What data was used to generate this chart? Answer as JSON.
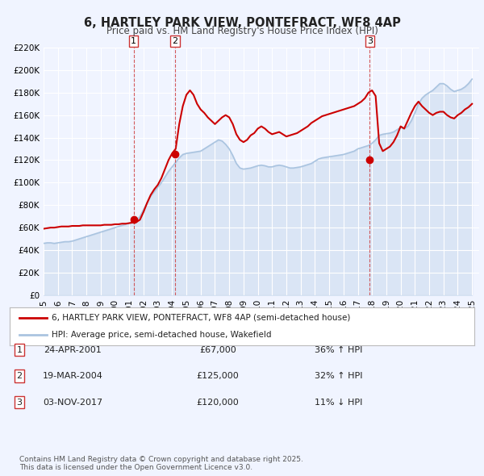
{
  "title": "6, HARTLEY PARK VIEW, PONTEFRACT, WF8 4AP",
  "subtitle": "Price paid vs. HM Land Registry's House Price Index (HPI)",
  "xlabel": "",
  "ylabel": "",
  "ylim": [
    0,
    220000
  ],
  "yticks": [
    0,
    20000,
    40000,
    60000,
    80000,
    100000,
    120000,
    140000,
    160000,
    180000,
    200000,
    220000
  ],
  "ytick_labels": [
    "£0",
    "£20K",
    "£40K",
    "£60K",
    "£80K",
    "£100K",
    "£120K",
    "£140K",
    "£160K",
    "£180K",
    "£200K",
    "£220K"
  ],
  "xlim_start": 1995.0,
  "xlim_end": 2025.5,
  "bg_color": "#f0f4ff",
  "plot_bg_color": "#f0f4ff",
  "hpi_color": "#aac4e0",
  "price_color": "#cc0000",
  "sale_marker_color": "#cc0000",
  "transaction_line_color": "#cc3333",
  "legend_label_price": "6, HARTLEY PARK VIEW, PONTEFRACT, WF8 4AP (semi-detached house)",
  "legend_label_hpi": "HPI: Average price, semi-detached house, Wakefield",
  "transactions": [
    {
      "num": 1,
      "date": 2001.31,
      "price": 67000,
      "label": "1",
      "pct": "36%",
      "dir": "↑",
      "date_str": "24-APR-2001",
      "price_str": "£67,000",
      "hpi_str": "36% ↑ HPI"
    },
    {
      "num": 2,
      "date": 2004.21,
      "price": 125000,
      "label": "2",
      "pct": "32%",
      "dir": "↑",
      "date_str": "19-MAR-2004",
      "price_str": "£125,000",
      "hpi_str": "32% ↑ HPI"
    },
    {
      "num": 3,
      "date": 2017.84,
      "price": 120000,
      "label": "3",
      "pct": "11%",
      "dir": "↓",
      "date_str": "03-NOV-2017",
      "price_str": "£120,000",
      "hpi_str": "11% ↓ HPI"
    }
  ],
  "footer": "Contains HM Land Registry data © Crown copyright and database right 2025.\nThis data is licensed under the Open Government Licence v3.0.",
  "hpi_data_x": [
    1995.0,
    1995.25,
    1995.5,
    1995.75,
    1996.0,
    1996.25,
    1996.5,
    1996.75,
    1997.0,
    1997.25,
    1997.5,
    1997.75,
    1998.0,
    1998.25,
    1998.5,
    1998.75,
    1999.0,
    1999.25,
    1999.5,
    1999.75,
    2000.0,
    2000.25,
    2000.5,
    2000.75,
    2001.0,
    2001.25,
    2001.5,
    2001.75,
    2002.0,
    2002.25,
    2002.5,
    2002.75,
    2003.0,
    2003.25,
    2003.5,
    2003.75,
    2004.0,
    2004.25,
    2004.5,
    2004.75,
    2005.0,
    2005.25,
    2005.5,
    2005.75,
    2006.0,
    2006.25,
    2006.5,
    2006.75,
    2007.0,
    2007.25,
    2007.5,
    2007.75,
    2008.0,
    2008.25,
    2008.5,
    2008.75,
    2009.0,
    2009.25,
    2009.5,
    2009.75,
    2010.0,
    2010.25,
    2010.5,
    2010.75,
    2011.0,
    2011.25,
    2011.5,
    2011.75,
    2012.0,
    2012.25,
    2012.5,
    2012.75,
    2013.0,
    2013.25,
    2013.5,
    2013.75,
    2014.0,
    2014.25,
    2014.5,
    2014.75,
    2015.0,
    2015.25,
    2015.5,
    2015.75,
    2016.0,
    2016.25,
    2016.5,
    2016.75,
    2017.0,
    2017.25,
    2017.5,
    2017.75,
    2018.0,
    2018.25,
    2018.5,
    2018.75,
    2019.0,
    2019.25,
    2019.5,
    2019.75,
    2020.0,
    2020.25,
    2020.5,
    2020.75,
    2021.0,
    2021.25,
    2021.5,
    2021.75,
    2022.0,
    2022.25,
    2022.5,
    2022.75,
    2023.0,
    2023.25,
    2023.5,
    2023.75,
    2024.0,
    2024.25,
    2024.5,
    2024.75,
    2025.0
  ],
  "hpi_data_y": [
    46000,
    46500,
    46500,
    46000,
    46500,
    47000,
    47500,
    47500,
    48000,
    49000,
    50000,
    51000,
    52000,
    53000,
    54000,
    55000,
    56000,
    57000,
    58000,
    59000,
    60000,
    61000,
    62000,
    63000,
    64000,
    65000,
    66000,
    70000,
    76000,
    82000,
    88000,
    92000,
    96000,
    100000,
    105000,
    110000,
    114000,
    118000,
    122000,
    125000,
    126000,
    126500,
    127000,
    127500,
    128000,
    130000,
    132000,
    134000,
    136000,
    138000,
    137000,
    134000,
    130000,
    124000,
    117000,
    113000,
    112000,
    112500,
    113000,
    114000,
    115000,
    115500,
    115000,
    114000,
    114000,
    115000,
    115500,
    115000,
    114000,
    113000,
    113000,
    113500,
    114000,
    115000,
    116000,
    117000,
    119000,
    121000,
    122000,
    122500,
    123000,
    123500,
    124000,
    124500,
    125000,
    126000,
    127000,
    128000,
    130000,
    131000,
    132000,
    133000,
    135000,
    138000,
    142000,
    143000,
    143500,
    144000,
    145000,
    147000,
    149000,
    148000,
    150000,
    155000,
    162000,
    170000,
    175000,
    178000,
    180000,
    182000,
    185000,
    188000,
    188000,
    186000,
    183000,
    181000,
    182000,
    183000,
    185000,
    188000,
    192000
  ],
  "price_data_x": [
    1995.0,
    1995.25,
    1995.5,
    1995.75,
    1996.0,
    1996.25,
    1996.5,
    1996.75,
    1997.0,
    1997.25,
    1997.5,
    1997.75,
    1998.0,
    1998.25,
    1998.5,
    1998.75,
    1999.0,
    1999.25,
    1999.5,
    1999.75,
    2000.0,
    2000.25,
    2000.5,
    2000.75,
    2001.0,
    2001.25,
    2001.5,
    2001.75,
    2002.0,
    2002.25,
    2002.5,
    2002.75,
    2003.0,
    2003.25,
    2003.5,
    2003.75,
    2004.0,
    2004.25,
    2004.5,
    2004.75,
    2005.0,
    2005.25,
    2005.5,
    2005.75,
    2006.0,
    2006.25,
    2006.5,
    2006.75,
    2007.0,
    2007.25,
    2007.5,
    2007.75,
    2008.0,
    2008.25,
    2008.5,
    2008.75,
    2009.0,
    2009.25,
    2009.5,
    2009.75,
    2010.0,
    2010.25,
    2010.5,
    2010.75,
    2011.0,
    2011.25,
    2011.5,
    2011.75,
    2012.0,
    2012.25,
    2012.5,
    2012.75,
    2013.0,
    2013.25,
    2013.5,
    2013.75,
    2014.0,
    2014.25,
    2014.5,
    2014.75,
    2015.0,
    2015.25,
    2015.5,
    2015.75,
    2016.0,
    2016.25,
    2016.5,
    2016.75,
    2017.0,
    2017.25,
    2017.5,
    2017.75,
    2018.0,
    2018.25,
    2018.5,
    2018.75,
    2019.0,
    2019.25,
    2019.5,
    2019.75,
    2020.0,
    2020.25,
    2020.5,
    2020.75,
    2021.0,
    2021.25,
    2021.5,
    2021.75,
    2022.0,
    2022.25,
    2022.5,
    2022.75,
    2023.0,
    2023.25,
    2023.5,
    2023.75,
    2024.0,
    2024.25,
    2024.5,
    2024.75,
    2025.0
  ],
  "price_data_y": [
    59000,
    59500,
    60000,
    60000,
    60500,
    61000,
    61000,
    61000,
    61500,
    61500,
    61500,
    62000,
    62000,
    62000,
    62000,
    62000,
    62000,
    62500,
    62500,
    62500,
    63000,
    63000,
    63500,
    63500,
    64000,
    64500,
    65000,
    67000,
    74000,
    82000,
    89000,
    94000,
    98000,
    104000,
    112000,
    120000,
    126000,
    130000,
    152000,
    168000,
    178000,
    182000,
    178000,
    170000,
    165000,
    162000,
    158000,
    155000,
    152000,
    155000,
    158000,
    160000,
    158000,
    152000,
    143000,
    138000,
    136000,
    138000,
    142000,
    144000,
    148000,
    150000,
    148000,
    145000,
    143000,
    144000,
    145000,
    143000,
    141000,
    142000,
    143000,
    144000,
    146000,
    148000,
    150000,
    153000,
    155000,
    157000,
    159000,
    160000,
    161000,
    162000,
    163000,
    164000,
    165000,
    166000,
    167000,
    168000,
    170000,
    172000,
    175000,
    180000,
    182000,
    177000,
    135000,
    128000,
    130000,
    132000,
    136000,
    142000,
    150000,
    148000,
    155000,
    162000,
    168000,
    172000,
    168000,
    165000,
    162000,
    160000,
    162000,
    163000,
    163000,
    160000,
    158000,
    157000,
    160000,
    162000,
    165000,
    167000,
    170000
  ]
}
